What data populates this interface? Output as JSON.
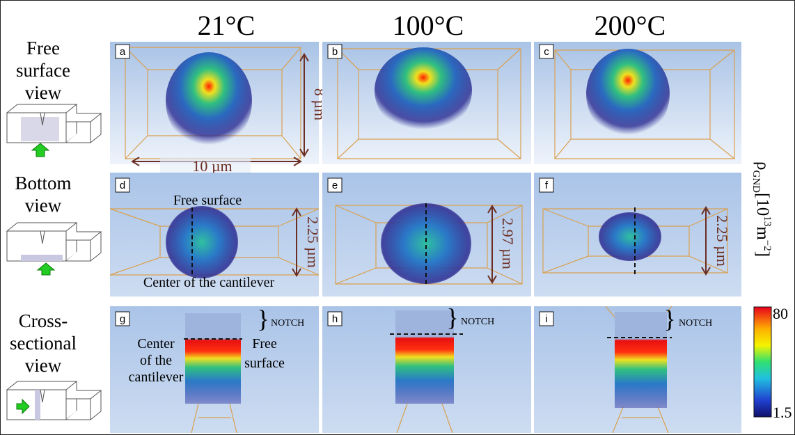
{
  "columns": [
    "21°C",
    "100°C",
    "200°C"
  ],
  "rows": [
    {
      "lines": [
        "Free",
        "surface",
        "view"
      ]
    },
    {
      "lines": [
        "Bottom",
        "view"
      ]
    },
    {
      "lines": [
        "Cross-",
        "sectional",
        "view"
      ]
    }
  ],
  "panels": [
    "a",
    "b",
    "c",
    "d",
    "e",
    "f",
    "g",
    "h",
    "i"
  ],
  "annotations": {
    "a": {
      "height": "8 µm",
      "width": "10 µm"
    },
    "d": {
      "top": "Free surface",
      "bottom": "Center of the cantilever",
      "height": "2.25 µm"
    },
    "e": {
      "height": "2.97 µm"
    },
    "f": {
      "height": "2.25 µm"
    },
    "g": {
      "notch": "NOTCH",
      "left": [
        "Center",
        "of the",
        "cantilever"
      ],
      "right": [
        "Free",
        "surface"
      ]
    },
    "h": {
      "notch": "NOTCH"
    },
    "i": {
      "notch": "NOTCH"
    }
  },
  "colorbar": {
    "label": [
      {
        "text": "ρ"
      },
      {
        "text": "GND",
        "sub": true
      },
      {
        "text": "[10"
      },
      {
        "text": "13",
        "sup": true
      },
      {
        "text": "m"
      },
      {
        "text": "−2",
        "sup": true
      },
      {
        "text": "]"
      }
    ],
    "max": 80,
    "min": 1.5
  }
}
